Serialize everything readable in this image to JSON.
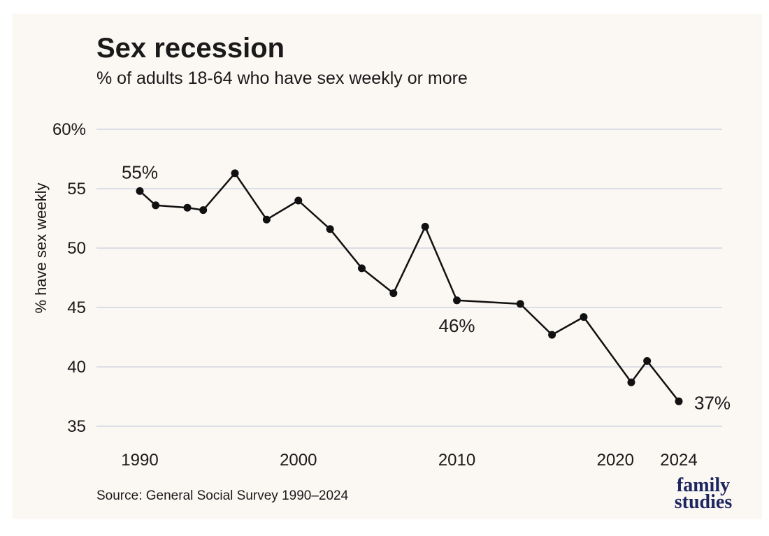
{
  "chart_data": {
    "type": "line",
    "title": "Sex recession",
    "subtitle": "% of adults 18-64 who have sex weekly or more",
    "ylabel": "% have sex weekly",
    "xlabel": "",
    "ylim": [
      35,
      60
    ],
    "xlim": [
      1990,
      2024
    ],
    "y_ticks": [
      {
        "value": 60,
        "label": "60%"
      },
      {
        "value": 55,
        "label": "55"
      },
      {
        "value": 50,
        "label": "50"
      },
      {
        "value": 45,
        "label": "45"
      },
      {
        "value": 40,
        "label": "40"
      },
      {
        "value": 35,
        "label": "35"
      }
    ],
    "x_ticks": [
      {
        "value": 1990,
        "label": "1990"
      },
      {
        "value": 2000,
        "label": "2000"
      },
      {
        "value": 2010,
        "label": "2010"
      },
      {
        "value": 2020,
        "label": "2020"
      },
      {
        "value": 2024,
        "label": "2024"
      }
    ],
    "grid": true,
    "series": [
      {
        "points": [
          {
            "x": 1990,
            "y": 54.8
          },
          {
            "x": 1991,
            "y": 53.6
          },
          {
            "x": 1993,
            "y": 53.4
          },
          {
            "x": 1994,
            "y": 53.2
          },
          {
            "x": 1996,
            "y": 56.3
          },
          {
            "x": 1998,
            "y": 52.4
          },
          {
            "x": 2000,
            "y": 54.0
          },
          {
            "x": 2002,
            "y": 51.6
          },
          {
            "x": 2004,
            "y": 48.3
          },
          {
            "x": 2006,
            "y": 46.2
          },
          {
            "x": 2008,
            "y": 51.8
          },
          {
            "x": 2010,
            "y": 45.6
          },
          {
            "x": 2014,
            "y": 45.3
          },
          {
            "x": 2016,
            "y": 42.7
          },
          {
            "x": 2018,
            "y": 44.2
          },
          {
            "x": 2021,
            "y": 38.7
          },
          {
            "x": 2022,
            "y": 40.5
          },
          {
            "x": 2024,
            "y": 37.1
          }
        ]
      }
    ],
    "annotations": [
      {
        "text": "55%",
        "x": 1990,
        "y": 54.8,
        "position": "above"
      },
      {
        "text": "46%",
        "x": 2010,
        "y": 45.6,
        "position": "below"
      },
      {
        "text": "37%",
        "x": 2024,
        "y": 37.1,
        "position": "right"
      }
    ],
    "source": "Source: General Social Survey 1990–2024",
    "colors": {
      "line": "#111111",
      "grid": "#dcdee6",
      "background": "#fbf7f3",
      "logo": "#1c2560"
    }
  },
  "logo": {
    "line1": "family",
    "line2": "studies"
  }
}
